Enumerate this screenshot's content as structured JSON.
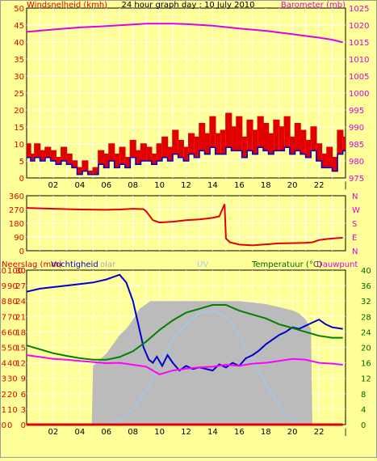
{
  "title": "24 hour graph day : 10 July 2010",
  "colors": {
    "background": "#FFFF99",
    "grid": "#FFFFFF",
    "label_red": "#E00000",
    "label_magenta": "#E000E0",
    "label_green": "#006600",
    "wind_gust": "#E00000",
    "wind_avg": "#0000CC",
    "barometer": "#E000E0",
    "direction": "#E00000",
    "humidity": "#0000CC",
    "solar": "#BBBBBB",
    "uv": "#99CCFF",
    "temperature": "#008000",
    "dewpoint": "#FF00FF",
    "rain": "#E00000"
  },
  "chart_data": [
    {
      "id": "wind_baro",
      "type": "line",
      "left_label": "Windsnelheid (kmh)",
      "right_label": "Barometer (mb)",
      "x_ticks": [
        "02",
        "04",
        "06",
        "08",
        "10",
        "12",
        "14",
        "16",
        "18",
        "20",
        "22",
        "|"
      ],
      "y_left_ticks": [
        0,
        5,
        10,
        15,
        20,
        25,
        30,
        35,
        40,
        45,
        50
      ],
      "y_right_ticks": [
        975,
        980,
        985,
        990,
        995,
        1000,
        1005,
        1010,
        1015,
        1020,
        1025
      ],
      "x_range": [
        0,
        24
      ],
      "y_left_range": [
        0,
        50
      ],
      "y_right_range": [
        975,
        1025
      ],
      "grid": true,
      "series": [
        {
          "name": "Windsnelheid",
          "kind": "gust",
          "axis": "left",
          "x": [
            0,
            0.3,
            0.6,
            1,
            1.4,
            1.8,
            2.2,
            2.6,
            3,
            3.4,
            3.8,
            4.2,
            4.6,
            5,
            5.4,
            5.8,
            6.2,
            6.6,
            7,
            7.4,
            7.8,
            8.2,
            8.6,
            9,
            9.4,
            9.8,
            10.2,
            10.6,
            11,
            11.4,
            11.8,
            12.2,
            12.6,
            13,
            13.4,
            13.8,
            14.2,
            14.6,
            15,
            15.4,
            15.8,
            16.2,
            16.6,
            17,
            17.4,
            17.8,
            18.2,
            18.6,
            19,
            19.4,
            19.8,
            20.2,
            20.6,
            21,
            21.4,
            21.8,
            22.2,
            22.6,
            23,
            23.4,
            23.8
          ],
          "y": [
            10,
            7,
            10,
            8,
            9,
            8,
            6,
            9,
            7,
            5,
            3,
            5,
            2,
            3,
            8,
            7,
            10,
            7,
            9,
            6,
            11,
            8,
            10,
            9,
            7,
            10,
            12,
            9,
            14,
            11,
            9,
            13,
            12,
            16,
            13,
            18,
            13,
            14,
            19,
            15,
            18,
            12,
            17,
            14,
            18,
            16,
            13,
            17,
            15,
            18,
            12,
            16,
            14,
            11,
            15,
            10,
            7,
            9,
            6,
            14,
            12
          ]
        },
        {
          "name": "Windsnelheid gemiddeld",
          "kind": "avg",
          "axis": "left",
          "x": [
            0,
            0.3,
            0.6,
            1,
            1.4,
            1.8,
            2.2,
            2.6,
            3,
            3.4,
            3.8,
            4.2,
            4.6,
            5,
            5.4,
            5.8,
            6.2,
            6.6,
            7,
            7.4,
            7.8,
            8.2,
            8.6,
            9,
            9.4,
            9.8,
            10.2,
            10.6,
            11,
            11.4,
            11.8,
            12.2,
            12.6,
            13,
            13.4,
            13.8,
            14.2,
            14.6,
            15,
            15.4,
            15.8,
            16.2,
            16.6,
            17,
            17.4,
            17.8,
            18.2,
            18.6,
            19,
            19.4,
            19.8,
            20.2,
            20.6,
            21,
            21.4,
            21.8,
            22.2,
            22.6,
            23,
            23.4,
            23.8
          ],
          "y": [
            6,
            5,
            6,
            5,
            6,
            5,
            4,
            5,
            4,
            3,
            1,
            2,
            1,
            1,
            4,
            3,
            5,
            3,
            4,
            3,
            6,
            4,
            5,
            5,
            4,
            5,
            6,
            5,
            7,
            6,
            5,
            7,
            6,
            8,
            7,
            9,
            7,
            7,
            9,
            8,
            8,
            6,
            8,
            7,
            9,
            8,
            7,
            8,
            8,
            9,
            7,
            8,
            7,
            6,
            8,
            5,
            3,
            3,
            2,
            7,
            8
          ]
        },
        {
          "name": "Barometer",
          "kind": "baro",
          "axis": "right",
          "x": [
            0,
            2,
            4,
            6,
            8,
            9,
            10,
            11,
            12,
            14,
            16,
            18,
            20,
            22,
            23,
            23.8
          ],
          "y": [
            1018,
            1018.7,
            1019.3,
            1019.7,
            1020.2,
            1020.4,
            1020.4,
            1020.4,
            1020.3,
            1019.8,
            1019,
            1018.3,
            1017.3,
            1016.3,
            1015.7,
            1014.9
          ]
        }
      ]
    },
    {
      "id": "winddir",
      "type": "line",
      "y_left_ticks": [
        "360",
        "270",
        "180",
        "90",
        "0"
      ],
      "y_right_ticks": [
        "N",
        "W",
        "S",
        "E",
        "N"
      ],
      "x_range": [
        0,
        24
      ],
      "y_range": [
        0,
        360
      ],
      "grid": true,
      "series": [
        {
          "name": "Windrichting",
          "x": [
            0,
            2,
            4,
            6,
            7,
            8,
            8.8,
            9,
            9.5,
            10,
            11,
            12,
            13,
            14,
            14.5,
            14.9,
            15,
            15.3,
            16,
            17,
            18,
            19,
            20,
            21,
            21.5,
            22,
            22.5,
            23,
            23.8
          ],
          "y": [
            280,
            275,
            270,
            268,
            270,
            275,
            272,
            258,
            200,
            185,
            190,
            200,
            205,
            215,
            225,
            305,
            80,
            55,
            40,
            35,
            42,
            48,
            50,
            52,
            55,
            70,
            75,
            80,
            85
          ]
        }
      ]
    },
    {
      "id": "rain_temp",
      "type": "line",
      "left_label_1": "Neerslag (mm)",
      "left_label_2": "Vochtigheid",
      "solar_label": "olar",
      "uv_label": "UV",
      "right_label_1": "Temperatuur (°C)",
      "right_label_2": "Dauwpunt",
      "x_ticks": [
        "02",
        "04",
        "06",
        "08",
        "10",
        "12",
        "14",
        "16",
        "18",
        "20",
        "22",
        "|"
      ],
      "y_rain_ticks": [
        0,
        1,
        2,
        3,
        4,
        5,
        6,
        7,
        8,
        9,
        10
      ],
      "y_hum_ticks": [
        0,
        10,
        20,
        30,
        40,
        50,
        60,
        70,
        80,
        90,
        100
      ],
      "y_temp_left_ticks": [
        0,
        3,
        6,
        9,
        12,
        15,
        18,
        21,
        24,
        27,
        30
      ],
      "y_temp_right_ticks": [
        0,
        4,
        8,
        12,
        16,
        20,
        24,
        28,
        32,
        36,
        40
      ],
      "x_range": [
        0,
        24
      ],
      "y_hum_range": [
        0,
        100
      ],
      "y_temp_range": [
        0,
        40
      ],
      "grid": true,
      "series": [
        {
          "name": "Vochtigheid",
          "x": [
            0,
            1,
            2,
            3,
            4,
            5,
            6,
            7,
            7.5,
            8,
            8.4,
            8.8,
            9.2,
            9.5,
            9.8,
            10.2,
            10.6,
            11,
            11.5,
            12,
            12.5,
            13,
            13.5,
            14,
            14.5,
            15,
            15.5,
            16,
            16.5,
            17,
            17.5,
            18,
            18.5,
            19,
            19.5,
            20,
            20.5,
            21,
            21.5,
            22,
            22.5,
            23,
            23.8
          ],
          "y": [
            86,
            88,
            89,
            90,
            91,
            92,
            94,
            97,
            92,
            80,
            65,
            50,
            42,
            40,
            44,
            38,
            45,
            40,
            35,
            38,
            36,
            37,
            36,
            35,
            39,
            37,
            40,
            38,
            43,
            45,
            48,
            52,
            55,
            58,
            60,
            63,
            62,
            64,
            66,
            68,
            65,
            63,
            62
          ]
        },
        {
          "name": "Temperatuur",
          "x": [
            0,
            1,
            2,
            3,
            4,
            5,
            6,
            7,
            8,
            9,
            10,
            11,
            12,
            13,
            14,
            15,
            16,
            17,
            18,
            19,
            20,
            21,
            22,
            23,
            23.8
          ],
          "y": [
            20.5,
            19.5,
            18.5,
            17.8,
            17.2,
            16.8,
            16.8,
            17.5,
            19,
            21.5,
            24.5,
            27,
            29,
            30,
            31,
            31,
            29.5,
            28.5,
            27.5,
            26,
            25,
            24,
            23,
            22.5,
            22.5
          ]
        },
        {
          "name": "Dauwpunt",
          "x": [
            0,
            1,
            2,
            3,
            4,
            5,
            6,
            7,
            8,
            9,
            10,
            11,
            12,
            13,
            14,
            15,
            16,
            17,
            18,
            19,
            20,
            21,
            22,
            23,
            23.8
          ],
          "y": [
            18,
            17.5,
            17,
            16.8,
            16.5,
            16.2,
            15.9,
            16,
            15.5,
            15,
            13,
            14,
            14.5,
            14.8,
            15,
            15.5,
            15.2,
            15.8,
            16,
            16.5,
            17,
            16.8,
            16,
            15.8,
            15.5
          ]
        },
        {
          "name": "Solar",
          "x": [
            0,
            4.9,
            5,
            5.5,
            6,
            6.5,
            7,
            7.5,
            8,
            8.5,
            9,
            9.3,
            10,
            11,
            12,
            13,
            14,
            15,
            16,
            17,
            18,
            19,
            20,
            20.5,
            21,
            21.4,
            21.5,
            22,
            23,
            23.8
          ],
          "y": [
            0,
            0,
            38,
            42,
            46,
            52,
            58,
            62,
            68,
            75,
            78,
            80,
            80,
            80,
            80,
            80,
            80,
            80,
            80,
            79,
            78,
            76,
            74,
            72,
            68,
            62,
            0,
            0,
            0,
            0
          ]
        },
        {
          "name": "UV",
          "x": [
            5,
            6,
            7,
            8,
            9,
            10,
            11,
            12,
            13,
            14,
            15,
            16,
            17,
            18,
            19,
            20,
            20.5
          ],
          "y": [
            0,
            0,
            3,
            10,
            22,
            40,
            55,
            65,
            72,
            74,
            70,
            58,
            42,
            26,
            12,
            3,
            0
          ]
        },
        {
          "name": "Neerslag",
          "x": [
            0,
            23.8
          ],
          "y": [
            0,
            0
          ]
        }
      ]
    }
  ]
}
